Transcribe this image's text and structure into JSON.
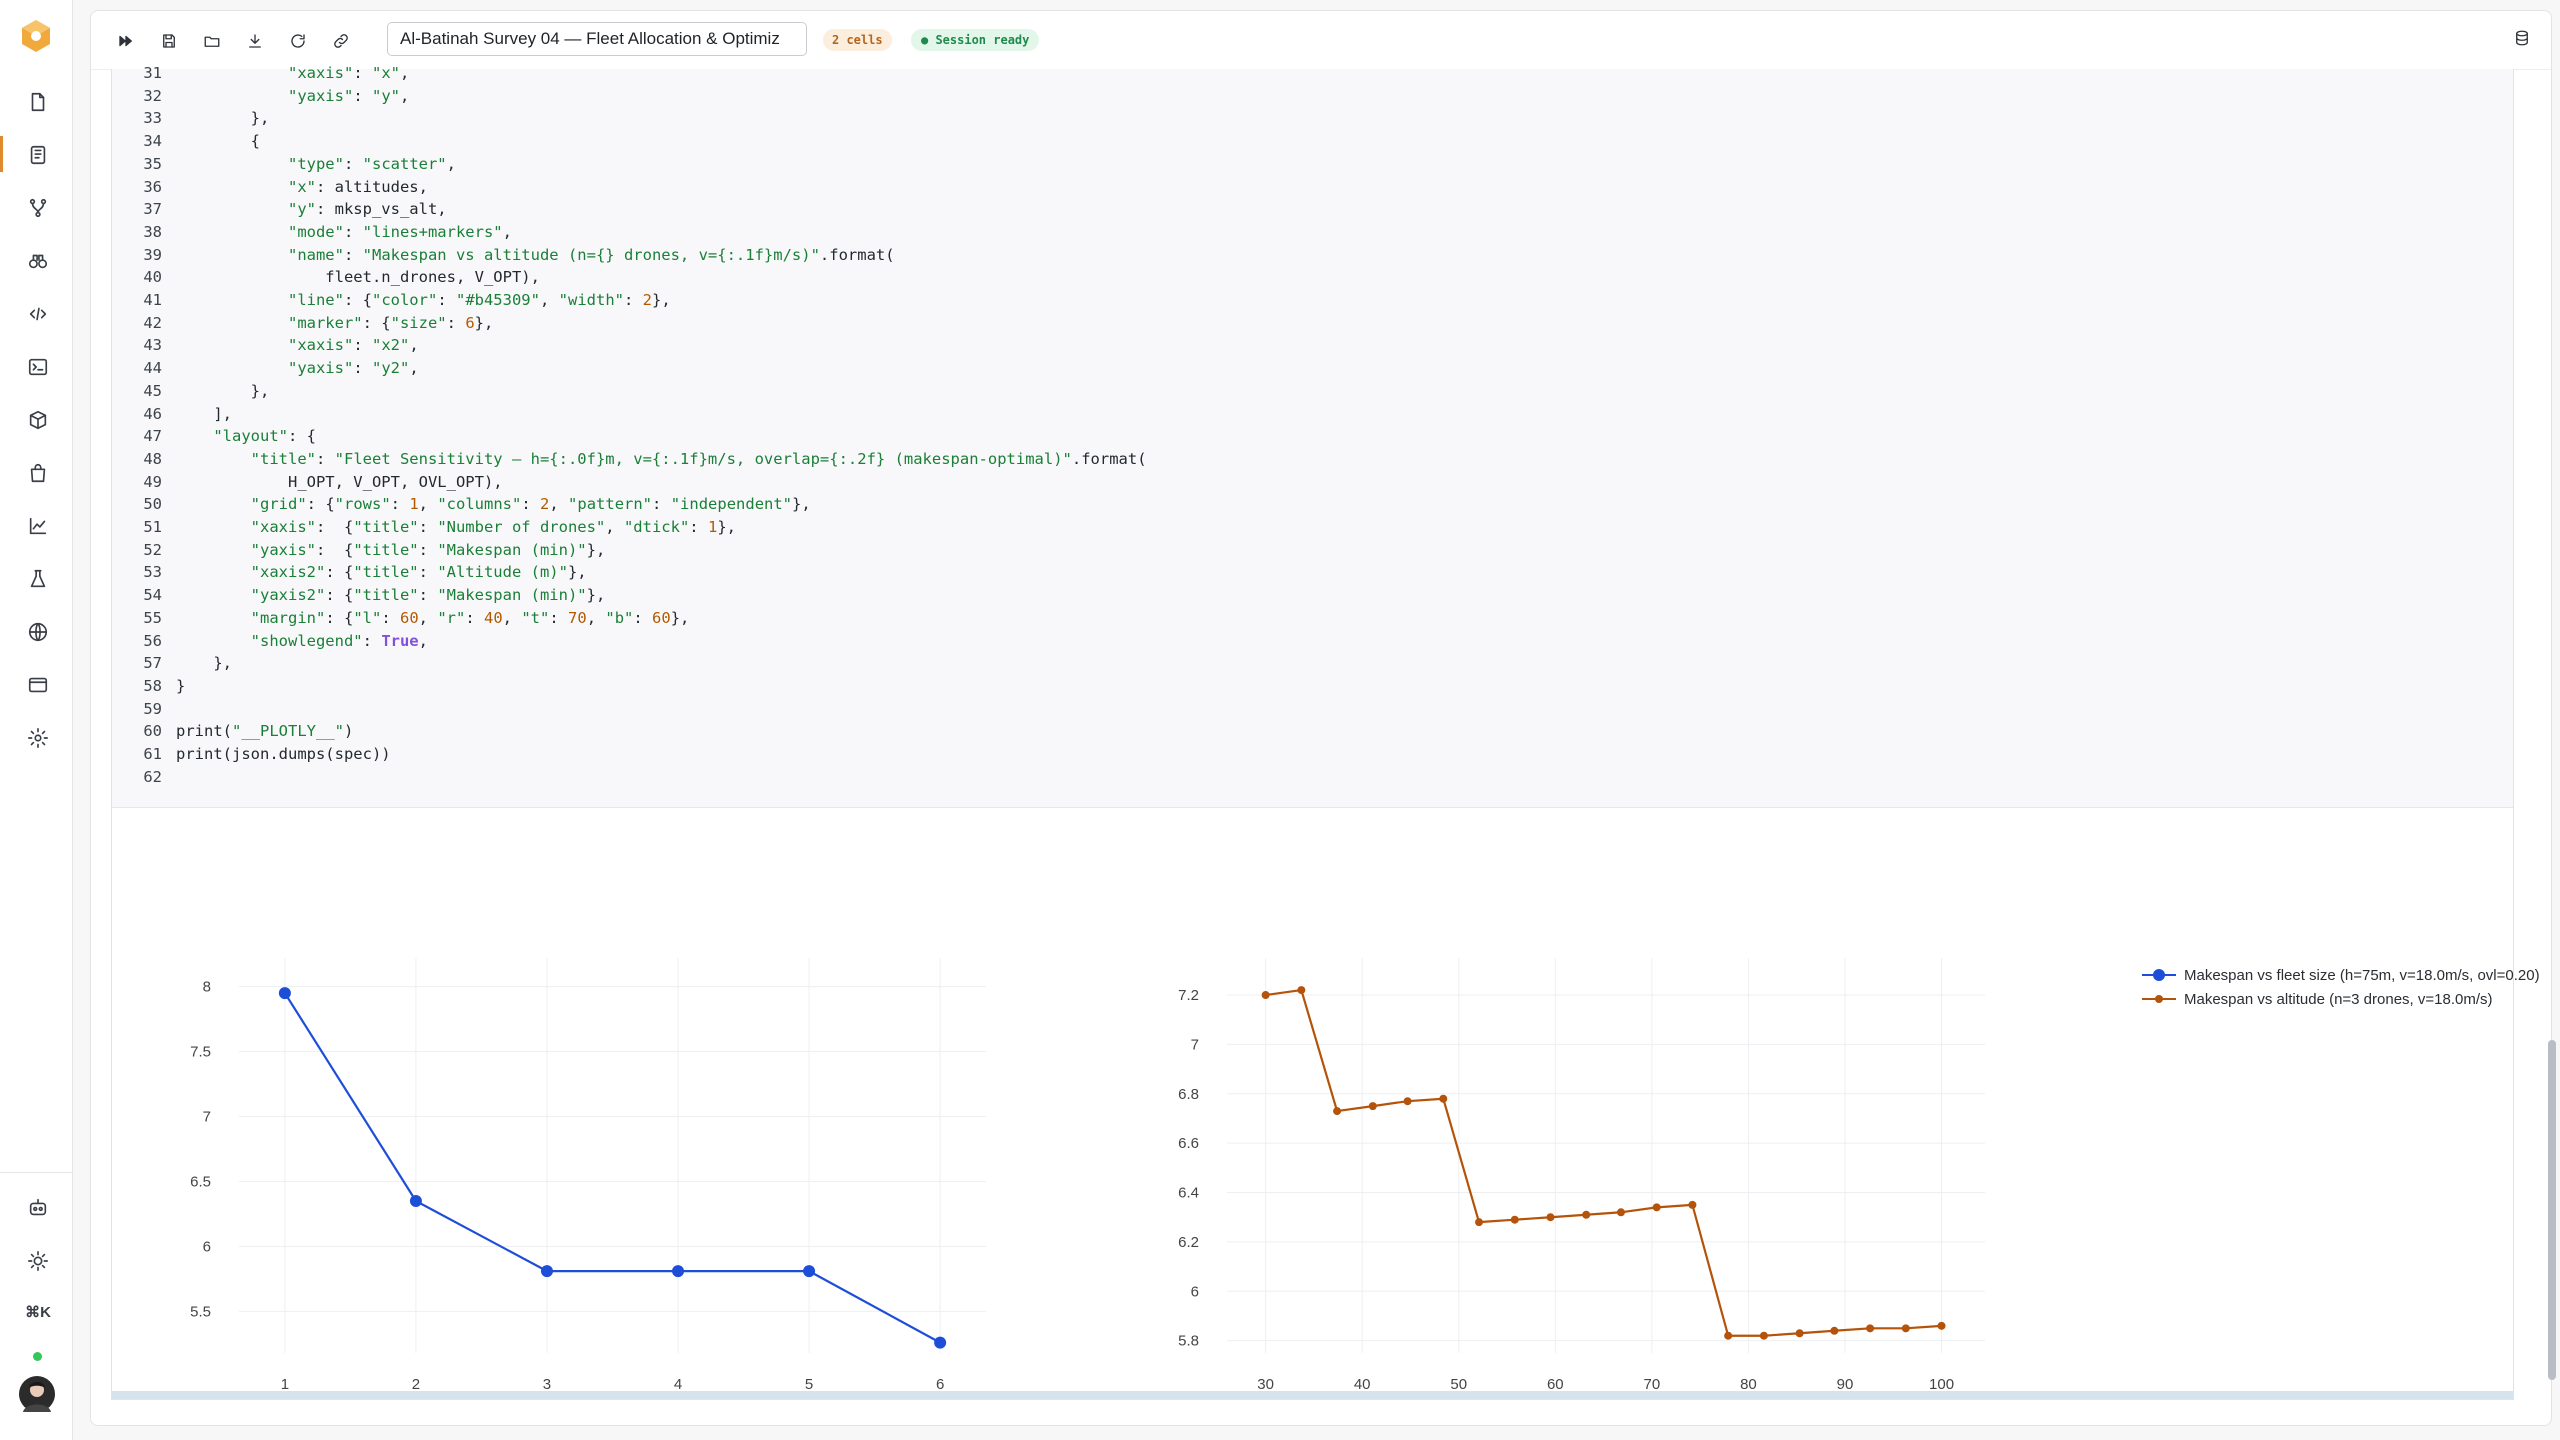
{
  "toolbar": {
    "notebook_title": "Al-Batinah Survey 04 — Fleet Allocation & Optimiz",
    "cells_badge": "2 cells",
    "status_badge": "● Session ready"
  },
  "rail": {
    "shortcut_hint": "⌘K"
  },
  "code": {
    "lines": [
      {
        "n": "31",
        "t": "            \"xaxis\": \"x\","
      },
      {
        "n": "32",
        "t": "            \"yaxis\": \"y\","
      },
      {
        "n": "33",
        "t": "        },"
      },
      {
        "n": "34",
        "t": "        {"
      },
      {
        "n": "35",
        "t": "            \"type\": \"scatter\","
      },
      {
        "n": "36",
        "t": "            \"x\": altitudes,"
      },
      {
        "n": "37",
        "t": "            \"y\": mksp_vs_alt,"
      },
      {
        "n": "38",
        "t": "            \"mode\": \"lines+markers\","
      },
      {
        "n": "39",
        "t": "            \"name\": \"Makespan vs altitude (n={} drones, v={:.1f}m/s)\".format("
      },
      {
        "n": "40",
        "t": "                fleet.n_drones, V_OPT),"
      },
      {
        "n": "41",
        "t": "            \"line\": {\"color\": \"#b45309\", \"width\": 2},"
      },
      {
        "n": "42",
        "t": "            \"marker\": {\"size\": 6},"
      },
      {
        "n": "43",
        "t": "            \"xaxis\": \"x2\","
      },
      {
        "n": "44",
        "t": "            \"yaxis\": \"y2\","
      },
      {
        "n": "45",
        "t": "        },"
      },
      {
        "n": "46",
        "t": "    ],"
      },
      {
        "n": "47",
        "t": "    \"layout\": {"
      },
      {
        "n": "48",
        "t": "        \"title\": \"Fleet Sensitivity — h={:.0f}m, v={:.1f}m/s, overlap={:.2f} (makespan-optimal)\".format("
      },
      {
        "n": "49",
        "t": "            H_OPT, V_OPT, OVL_OPT),"
      },
      {
        "n": "50",
        "t": "        \"grid\": {\"rows\": 1, \"columns\": 2, \"pattern\": \"independent\"},"
      },
      {
        "n": "51",
        "t": "        \"xaxis\":  {\"title\": \"Number of drones\", \"dtick\": 1},"
      },
      {
        "n": "52",
        "t": "        \"yaxis\":  {\"title\": \"Makespan (min)\"},"
      },
      {
        "n": "53",
        "t": "        \"xaxis2\": {\"title\": \"Altitude (m)\"},"
      },
      {
        "n": "54",
        "t": "        \"yaxis2\": {\"title\": \"Makespan (min)\"},"
      },
      {
        "n": "55",
        "t": "        \"margin\": {\"l\": 60, \"r\": 40, \"t\": 70, \"b\": 60},"
      },
      {
        "n": "56",
        "t": "        \"showlegend\": True,"
      },
      {
        "n": "57",
        "t": "    },"
      },
      {
        "n": "58",
        "t": "}"
      },
      {
        "n": "59",
        "t": ""
      },
      {
        "n": "60",
        "t": "print(\"__PLOTLY__\")"
      },
      {
        "n": "61",
        "t": "print(json.dumps(spec))"
      },
      {
        "n": "62",
        "t": ""
      }
    ]
  },
  "colors": {
    "series1": "#1d4ed8",
    "series2": "#b45309"
  },
  "chart_data": [
    {
      "type": "line",
      "x": [
        1,
        2,
        3,
        4,
        5,
        6
      ],
      "y": [
        7.95,
        6.35,
        5.81,
        5.81,
        5.81,
        5.26
      ],
      "xticks": [
        "1",
        "2",
        "3",
        "4",
        "5",
        "6"
      ],
      "yticks": [
        "5.5",
        "6",
        "6.5",
        "7",
        "7.5",
        "8"
      ],
      "xlim": [
        0.65,
        6.35
      ],
      "ylim": [
        5.18,
        8.22
      ],
      "grid": true,
      "series_name": "Makespan vs fleet size (h=75m, v=18.0m/s, ovl=0.20)"
    },
    {
      "type": "line",
      "x": [
        30,
        33.7,
        37.4,
        41.1,
        44.7,
        48.4,
        52.1,
        55.8,
        59.5,
        63.2,
        66.8,
        70.5,
        74.2,
        77.9,
        81.6,
        85.3,
        88.9,
        92.6,
        96.3,
        100
      ],
      "y": [
        7.2,
        7.22,
        6.73,
        6.75,
        6.77,
        6.78,
        6.28,
        6.29,
        6.3,
        6.31,
        6.32,
        6.34,
        6.35,
        5.82,
        5.82,
        5.83,
        5.84,
        5.85,
        5.85,
        5.86
      ],
      "xticks": [
        "30",
        "40",
        "50",
        "60",
        "70",
        "80",
        "90",
        "100"
      ],
      "yticks": [
        "5.8",
        "6",
        "6.2",
        "6.4",
        "6.6",
        "6.8",
        "7",
        "7.2"
      ],
      "xlim": [
        26,
        104.5
      ],
      "ylim": [
        5.75,
        7.35
      ],
      "grid": true,
      "series_name": "Makespan vs altitude (n=3 drones, v=18.0m/s)"
    }
  ]
}
